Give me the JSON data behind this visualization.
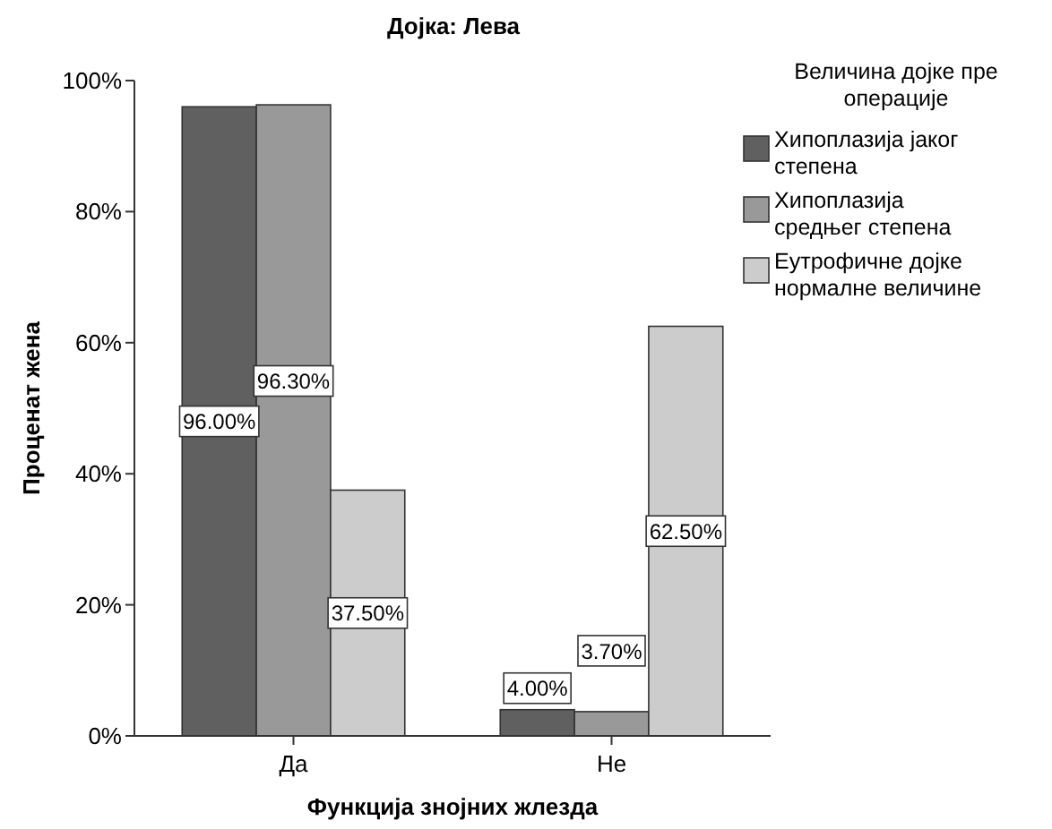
{
  "chart_data": {
    "type": "bar",
    "title": "Дојка: Лева",
    "xlabel": "Функција знојних жлезда",
    "ylabel": "Проценат жена",
    "legend_title": "Величина дојке пре операције",
    "categories": [
      "Да",
      "Не"
    ],
    "series": [
      {
        "name": "Хипоплазија јаког степена",
        "color": "#606060",
        "values": [
          96.0,
          4.0
        ],
        "value_labels": [
          "96.00%",
          "4.00%"
        ]
      },
      {
        "name": "Хипоплазија средњег степена",
        "color": "#999999",
        "values": [
          96.3,
          3.7
        ],
        "value_labels": [
          "96.30%",
          "3.70%"
        ]
      },
      {
        "name": "Еутрофичне дојке нормалне величине",
        "color": "#cccccc",
        "values": [
          37.5,
          62.5
        ],
        "value_labels": [
          "37.50%",
          "62.50%"
        ]
      }
    ],
    "ylim": [
      0,
      100
    ],
    "yticks": [
      {
        "value": 0,
        "label": "0%"
      },
      {
        "value": 20,
        "label": "20%"
      },
      {
        "value": 40,
        "label": "40%"
      },
      {
        "value": 60,
        "label": "60%"
      },
      {
        "value": 80,
        "label": "80%"
      },
      {
        "value": 100,
        "label": "100%"
      }
    ],
    "legend": "right",
    "grid": false
  }
}
